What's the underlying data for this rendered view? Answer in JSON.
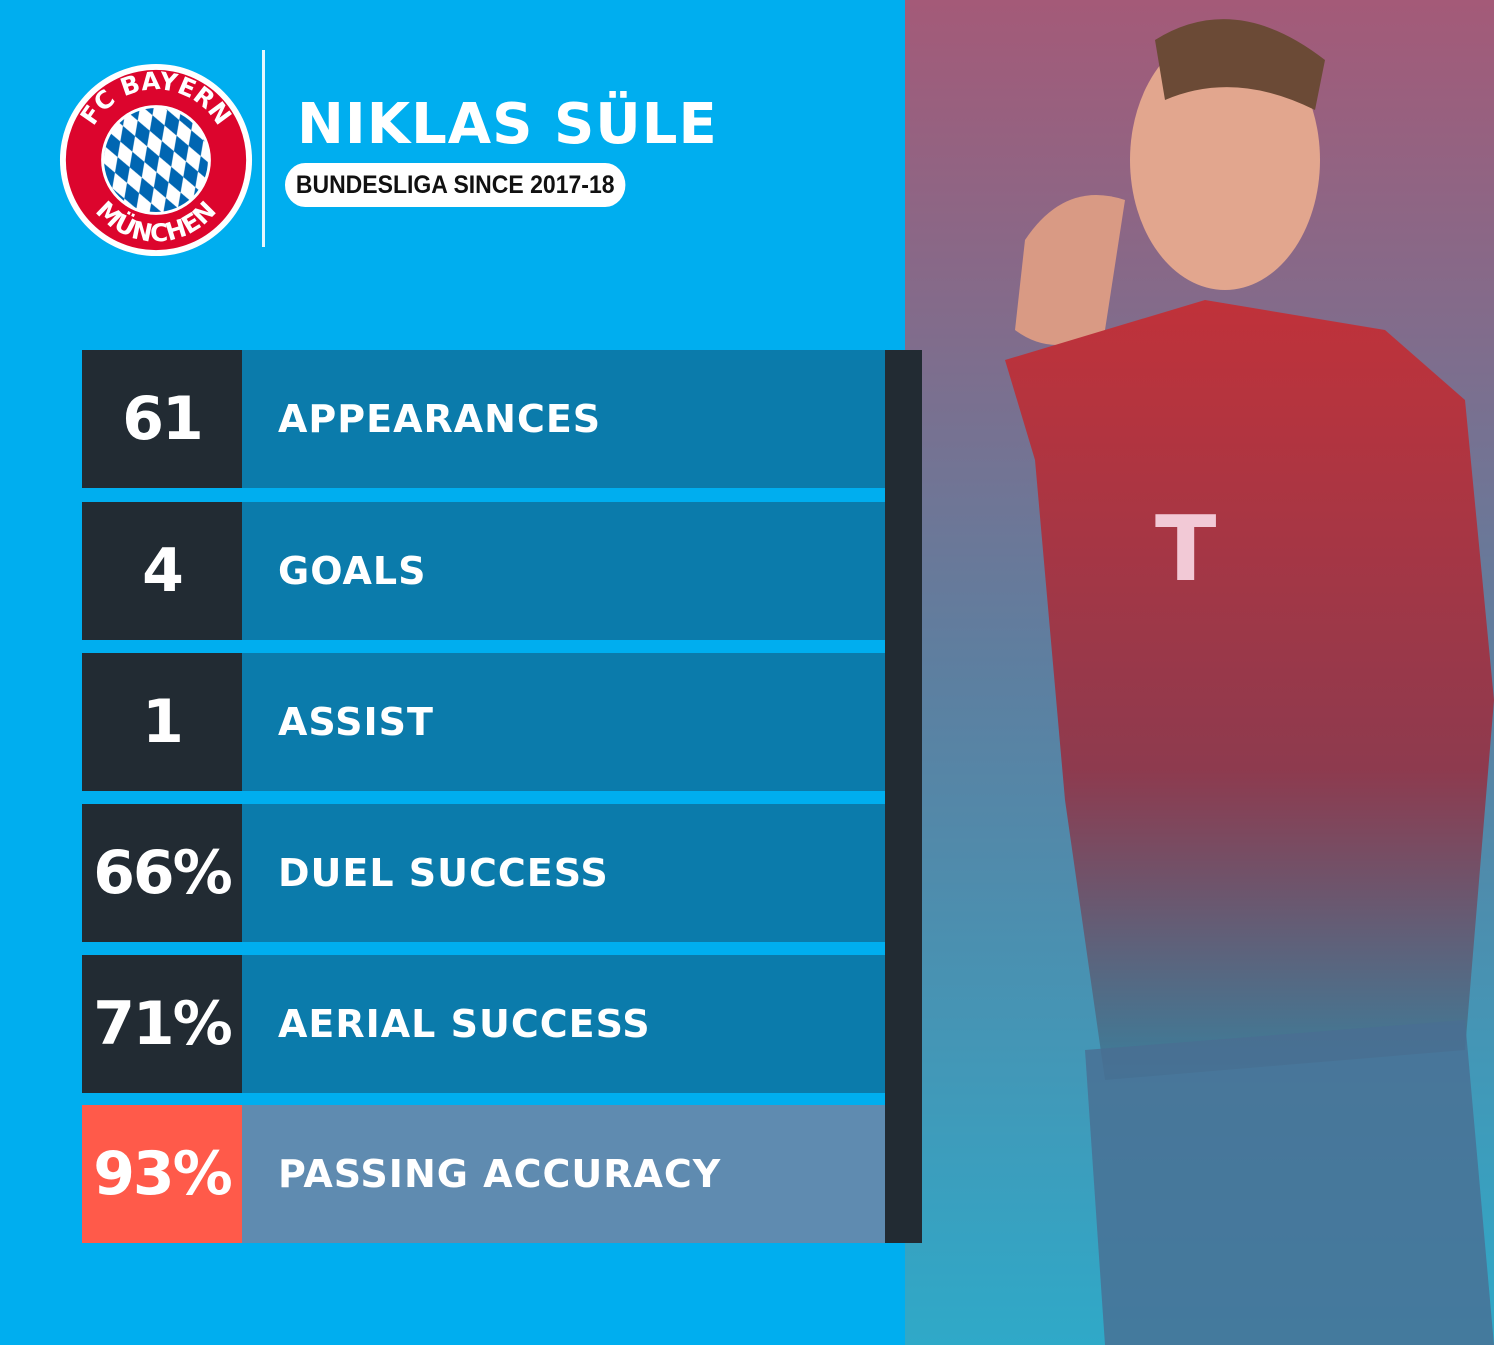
{
  "header": {
    "club_logo_text": "FC BAYERN MÜNCHEN",
    "player_name": "NIKLAS SÜLE",
    "subtitle": "BUNDESLIGA SINCE 2017-18"
  },
  "stats": [
    {
      "value": "61",
      "label": "APPEARANCES",
      "highlight": false
    },
    {
      "value": "4",
      "label": "GOALS",
      "highlight": false
    },
    {
      "value": "1",
      "label": "ASSIST",
      "highlight": false
    },
    {
      "value": "66%",
      "label": "DUEL SUCCESS",
      "highlight": false
    },
    {
      "value": "71%",
      "label": "AERIAL SUCCESS",
      "highlight": false
    },
    {
      "value": "93%",
      "label": "PASSING ACCURACY",
      "highlight": true
    }
  ],
  "colors": {
    "background": "#00aeef",
    "number_box": "#222b33",
    "label_bar": "#0b7bab",
    "highlight_number": "#ff5a4a",
    "highlight_bar": "#5f8bb0"
  }
}
